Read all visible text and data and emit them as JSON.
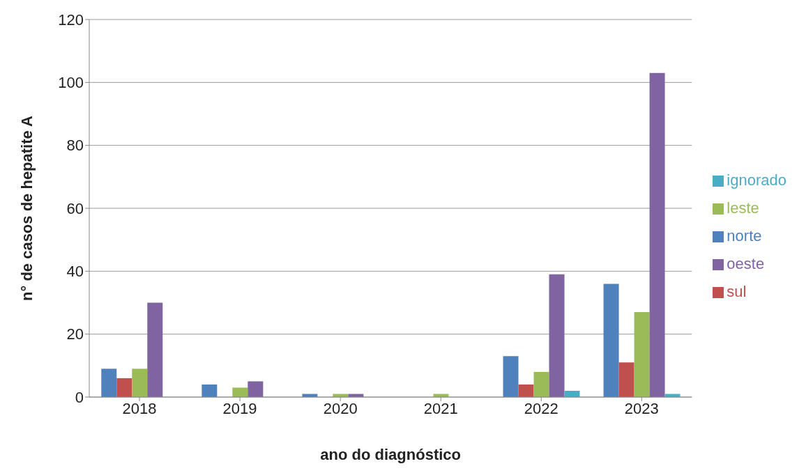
{
  "chart_data": {
    "type": "bar",
    "xlabel": "ano do diagnóstico",
    "ylabel": "n° de casos de hepatite A",
    "categories": [
      "2018",
      "2019",
      "2020",
      "2021",
      "2022",
      "2023"
    ],
    "series": [
      {
        "name": "norte",
        "color": "#4f81bd",
        "values": [
          9,
          4,
          1,
          0,
          13,
          36
        ]
      },
      {
        "name": "sul",
        "color": "#c0504d",
        "values": [
          6,
          0,
          0,
          0,
          4,
          11
        ]
      },
      {
        "name": "leste",
        "color": "#9bbb59",
        "values": [
          9,
          3,
          1,
          1,
          8,
          27
        ]
      },
      {
        "name": "oeste",
        "color": "#8064a2",
        "values": [
          30,
          5,
          1,
          0,
          39,
          103
        ]
      },
      {
        "name": "ignorado",
        "color": "#4bacc6",
        "values": [
          0,
          0,
          0,
          0,
          2,
          1
        ]
      }
    ],
    "ylim": [
      0,
      120
    ],
    "yticks": [
      0,
      20,
      40,
      60,
      80,
      100,
      120
    ],
    "grid": "y",
    "legend": "right"
  }
}
